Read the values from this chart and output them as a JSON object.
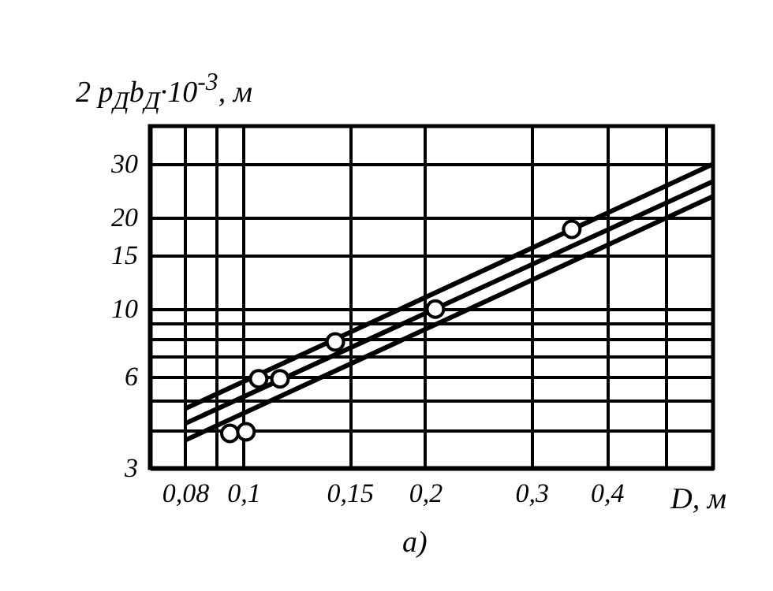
{
  "chart_data": {
    "type": "line",
    "xlabel": "D, м",
    "ylabel": "2 p$_{Д}$b$_{Д}$·10$^{-3}$, м",
    "annotations": [
      "a)"
    ],
    "log": "xy",
    "grid": true,
    "xlim": [
      0.07,
      0.6
    ],
    "xticks": [
      {
        "value": 0.08,
        "label": "0,08"
      },
      {
        "value": 0.09,
        "label": null
      },
      {
        "value": 0.1,
        "label": "0,1"
      },
      {
        "value": 0.15,
        "label": "0,15"
      },
      {
        "value": 0.2,
        "label": "0,2"
      },
      {
        "value": 0.3,
        "label": "0,3"
      },
      {
        "value": 0.4,
        "label": "0,4"
      },
      {
        "value": 0.5,
        "label": null
      }
    ],
    "ylim": [
      3,
      40
    ],
    "yticks": [
      3,
      {
        "value": 4,
        "label": null
      },
      {
        "value": 5,
        "label": null
      },
      6,
      {
        "value": 7,
        "label": null
      },
      {
        "value": 8,
        "label": null
      },
      {
        "value": 9,
        "label": null
      },
      10,
      15,
      20,
      30
    ],
    "series": [
      {
        "color": "#000000",
        "x": [
          0.08,
          0.6
        ],
        "values": [
          4.7,
          30
        ]
      },
      {
        "color": "#000000",
        "x": [
          0.08,
          0.6
        ],
        "values": [
          4.2,
          26.3
        ]
      },
      {
        "color": "#000000",
        "x": [
          0.08,
          0.6
        ],
        "values": [
          3.7,
          23.5
        ]
      },
      {
        "type": "scatter",
        "color": "#000000",
        "marker": "circle",
        "x": [
          0.095,
          0.101,
          0.106,
          0.115,
          0.142,
          0.208,
          0.35
        ],
        "values": [
          3.9,
          3.95,
          5.9,
          5.9,
          7.8,
          10,
          18.3
        ]
      }
    ]
  }
}
